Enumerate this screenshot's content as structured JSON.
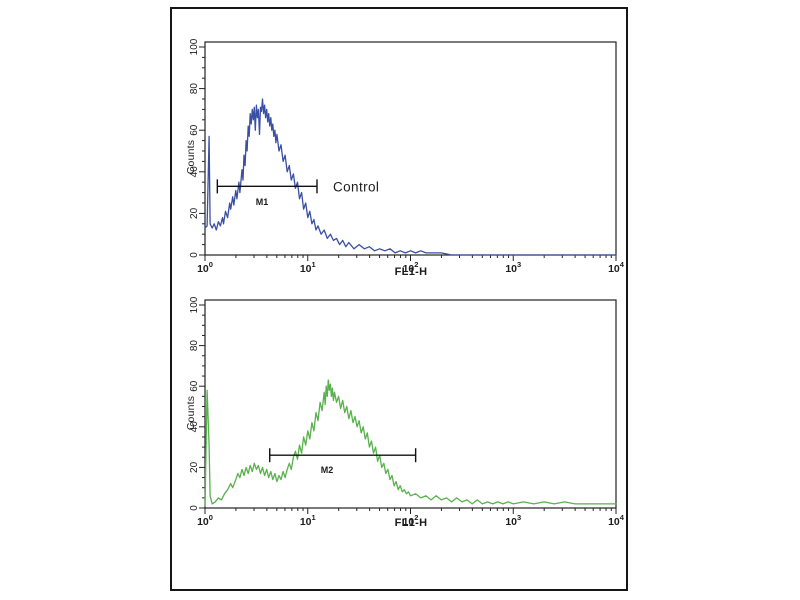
{
  "figure": {
    "background_color": "#ffffff",
    "panel_border_color": "#161616",
    "axis_color": "#222222"
  },
  "chart_data": [
    {
      "type": "line",
      "subtype": "flow-cytometry-histogram",
      "color": "#3a4fa3",
      "xlabel": "FL1-H",
      "ylabel": "Counts",
      "x_scale": "log10",
      "x_range_exponents": [
        0,
        4
      ],
      "x_tick_exponents": [
        0,
        1,
        2,
        3,
        4
      ],
      "x_tick_base": "10",
      "y_ticks": [
        0,
        20,
        40,
        60,
        80,
        100
      ],
      "ylim": [
        0,
        100
      ],
      "grid": false,
      "marker": {
        "label": "M1",
        "from_log10": 0.12,
        "to_log10": 1.09,
        "at_count": 33
      },
      "annotation": {
        "text": "Control",
        "at_log10": 1.22,
        "at_count": 33
      },
      "points_log10_count": [
        [
          0.0,
          13
        ],
        [
          0.02,
          14
        ],
        [
          0.04,
          57
        ],
        [
          0.05,
          15
        ],
        [
          0.07,
          13
        ],
        [
          0.09,
          15
        ],
        [
          0.11,
          12
        ],
        [
          0.13,
          16
        ],
        [
          0.15,
          14
        ],
        [
          0.17,
          18
        ],
        [
          0.18,
          15
        ],
        [
          0.2,
          21
        ],
        [
          0.22,
          18
        ],
        [
          0.24,
          25
        ],
        [
          0.25,
          22
        ],
        [
          0.27,
          28
        ],
        [
          0.28,
          24
        ],
        [
          0.3,
          31
        ],
        [
          0.31,
          27
        ],
        [
          0.33,
          35
        ],
        [
          0.34,
          30
        ],
        [
          0.36,
          41
        ],
        [
          0.37,
          36
        ],
        [
          0.38,
          48
        ],
        [
          0.39,
          43
        ],
        [
          0.4,
          55
        ],
        [
          0.41,
          50
        ],
        [
          0.42,
          62
        ],
        [
          0.43,
          57
        ],
        [
          0.44,
          68
        ],
        [
          0.45,
          63
        ],
        [
          0.46,
          70
        ],
        [
          0.47,
          65
        ],
        [
          0.48,
          71
        ],
        [
          0.49,
          60
        ],
        [
          0.5,
          72
        ],
        [
          0.51,
          66
        ],
        [
          0.52,
          70
        ],
        [
          0.53,
          58
        ],
        [
          0.54,
          71
        ],
        [
          0.55,
          69
        ],
        [
          0.56,
          75
        ],
        [
          0.57,
          68
        ],
        [
          0.58,
          72
        ],
        [
          0.59,
          66
        ],
        [
          0.6,
          70
        ],
        [
          0.61,
          64
        ],
        [
          0.62,
          68
        ],
        [
          0.63,
          62
        ],
        [
          0.64,
          66
        ],
        [
          0.65,
          60
        ],
        [
          0.66,
          63
        ],
        [
          0.67,
          57
        ],
        [
          0.68,
          60
        ],
        [
          0.69,
          54
        ],
        [
          0.7,
          58
        ],
        [
          0.72,
          50
        ],
        [
          0.74,
          53
        ],
        [
          0.76,
          45
        ],
        [
          0.78,
          48
        ],
        [
          0.8,
          40
        ],
        [
          0.82,
          43
        ],
        [
          0.84,
          36
        ],
        [
          0.86,
          39
        ],
        [
          0.88,
          32
        ],
        [
          0.9,
          35
        ],
        [
          0.92,
          27
        ],
        [
          0.94,
          30
        ],
        [
          0.96,
          22
        ],
        [
          0.98,
          25
        ],
        [
          1.0,
          18
        ],
        [
          1.02,
          21
        ],
        [
          1.04,
          15
        ],
        [
          1.06,
          17
        ],
        [
          1.08,
          12
        ],
        [
          1.1,
          14
        ],
        [
          1.13,
          10
        ],
        [
          1.16,
          12
        ],
        [
          1.19,
          8
        ],
        [
          1.22,
          10
        ],
        [
          1.25,
          7
        ],
        [
          1.28,
          8
        ],
        [
          1.31,
          5
        ],
        [
          1.34,
          7
        ],
        [
          1.37,
          4
        ],
        [
          1.4,
          6
        ],
        [
          1.45,
          3
        ],
        [
          1.5,
          5
        ],
        [
          1.55,
          3
        ],
        [
          1.6,
          4
        ],
        [
          1.65,
          2
        ],
        [
          1.7,
          3
        ],
        [
          1.75,
          2
        ],
        [
          1.8,
          3
        ],
        [
          1.85,
          1
        ],
        [
          1.9,
          2
        ],
        [
          1.95,
          1
        ],
        [
          2.0,
          2
        ],
        [
          2.05,
          1
        ],
        [
          2.1,
          2
        ],
        [
          2.15,
          1
        ],
        [
          2.2,
          1
        ],
        [
          2.3,
          1
        ],
        [
          2.4,
          0
        ],
        [
          2.6,
          0
        ],
        [
          3.0,
          0
        ],
        [
          3.5,
          0
        ],
        [
          4.0,
          0
        ]
      ]
    },
    {
      "type": "line",
      "subtype": "flow-cytometry-histogram",
      "color": "#58b14c",
      "xlabel": "FL1-H",
      "ylabel": "Counts",
      "x_scale": "log10",
      "x_range_exponents": [
        0,
        4
      ],
      "x_tick_exponents": [
        0,
        1,
        2,
        3,
        4
      ],
      "x_tick_base": "10",
      "y_ticks": [
        0,
        20,
        40,
        60,
        80,
        100
      ],
      "ylim": [
        0,
        100
      ],
      "grid": false,
      "marker": {
        "label": "M2",
        "from_log10": 0.63,
        "to_log10": 2.05,
        "at_count": 26
      },
      "annotation": null,
      "points_log10_count": [
        [
          0.0,
          1
        ],
        [
          0.02,
          58
        ],
        [
          0.04,
          31
        ],
        [
          0.05,
          6
        ],
        [
          0.07,
          2
        ],
        [
          0.1,
          3
        ],
        [
          0.13,
          5
        ],
        [
          0.16,
          4
        ],
        [
          0.19,
          7
        ],
        [
          0.22,
          9
        ],
        [
          0.25,
          12
        ],
        [
          0.27,
          10
        ],
        [
          0.3,
          14
        ],
        [
          0.32,
          17
        ],
        [
          0.34,
          15
        ],
        [
          0.36,
          19
        ],
        [
          0.38,
          16
        ],
        [
          0.4,
          20
        ],
        [
          0.42,
          17
        ],
        [
          0.44,
          21
        ],
        [
          0.46,
          18
        ],
        [
          0.48,
          22
        ],
        [
          0.5,
          19
        ],
        [
          0.52,
          21
        ],
        [
          0.54,
          17
        ],
        [
          0.56,
          20
        ],
        [
          0.58,
          16
        ],
        [
          0.6,
          19
        ],
        [
          0.62,
          15
        ],
        [
          0.64,
          18
        ],
        [
          0.66,
          14
        ],
        [
          0.68,
          17
        ],
        [
          0.7,
          13
        ],
        [
          0.72,
          16
        ],
        [
          0.74,
          14
        ],
        [
          0.76,
          18
        ],
        [
          0.78,
          15
        ],
        [
          0.8,
          19
        ],
        [
          0.82,
          22
        ],
        [
          0.84,
          19
        ],
        [
          0.86,
          25
        ],
        [
          0.88,
          28
        ],
        [
          0.9,
          24
        ],
        [
          0.92,
          31
        ],
        [
          0.94,
          27
        ],
        [
          0.96,
          35
        ],
        [
          0.98,
          31
        ],
        [
          1.0,
          38
        ],
        [
          1.02,
          34
        ],
        [
          1.04,
          42
        ],
        [
          1.06,
          38
        ],
        [
          1.08,
          47
        ],
        [
          1.1,
          43
        ],
        [
          1.12,
          52
        ],
        [
          1.14,
          48
        ],
        [
          1.16,
          57
        ],
        [
          1.17,
          51
        ],
        [
          1.18,
          60
        ],
        [
          1.19,
          55
        ],
        [
          1.2,
          63
        ],
        [
          1.21,
          58
        ],
        [
          1.22,
          61
        ],
        [
          1.23,
          55
        ],
        [
          1.24,
          59
        ],
        [
          1.25,
          53
        ],
        [
          1.26,
          57
        ],
        [
          1.28,
          52
        ],
        [
          1.3,
          55
        ],
        [
          1.32,
          49
        ],
        [
          1.34,
          53
        ],
        [
          1.36,
          47
        ],
        [
          1.38,
          50
        ],
        [
          1.4,
          44
        ],
        [
          1.42,
          48
        ],
        [
          1.44,
          42
        ],
        [
          1.46,
          45
        ],
        [
          1.48,
          40
        ],
        [
          1.5,
          43
        ],
        [
          1.52,
          37
        ],
        [
          1.54,
          40
        ],
        [
          1.56,
          34
        ],
        [
          1.58,
          37
        ],
        [
          1.6,
          30
        ],
        [
          1.62,
          33
        ],
        [
          1.64,
          27
        ],
        [
          1.66,
          30
        ],
        [
          1.68,
          23
        ],
        [
          1.7,
          26
        ],
        [
          1.72,
          20
        ],
        [
          1.74,
          22
        ],
        [
          1.76,
          17
        ],
        [
          1.78,
          19
        ],
        [
          1.8,
          14
        ],
        [
          1.82,
          16
        ],
        [
          1.84,
          11
        ],
        [
          1.86,
          13
        ],
        [
          1.88,
          9
        ],
        [
          1.9,
          11
        ],
        [
          1.92,
          8
        ],
        [
          1.94,
          9
        ],
        [
          1.96,
          7
        ],
        [
          1.98,
          8
        ],
        [
          2.0,
          6
        ],
        [
          2.05,
          7
        ],
        [
          2.1,
          5
        ],
        [
          2.15,
          6
        ],
        [
          2.2,
          4
        ],
        [
          2.25,
          6
        ],
        [
          2.3,
          4
        ],
        [
          2.35,
          5
        ],
        [
          2.4,
          3
        ],
        [
          2.45,
          5
        ],
        [
          2.5,
          3
        ],
        [
          2.55,
          4
        ],
        [
          2.6,
          2
        ],
        [
          2.65,
          4
        ],
        [
          2.7,
          2
        ],
        [
          2.75,
          3
        ],
        [
          2.8,
          2
        ],
        [
          2.85,
          3
        ],
        [
          2.9,
          2
        ],
        [
          2.95,
          3
        ],
        [
          3.0,
          2
        ],
        [
          3.1,
          3
        ],
        [
          3.2,
          2
        ],
        [
          3.3,
          3
        ],
        [
          3.4,
          2
        ],
        [
          3.5,
          3
        ],
        [
          3.6,
          2
        ],
        [
          3.7,
          2
        ],
        [
          3.8,
          2
        ],
        [
          3.9,
          2
        ],
        [
          4.0,
          2
        ]
      ]
    }
  ]
}
